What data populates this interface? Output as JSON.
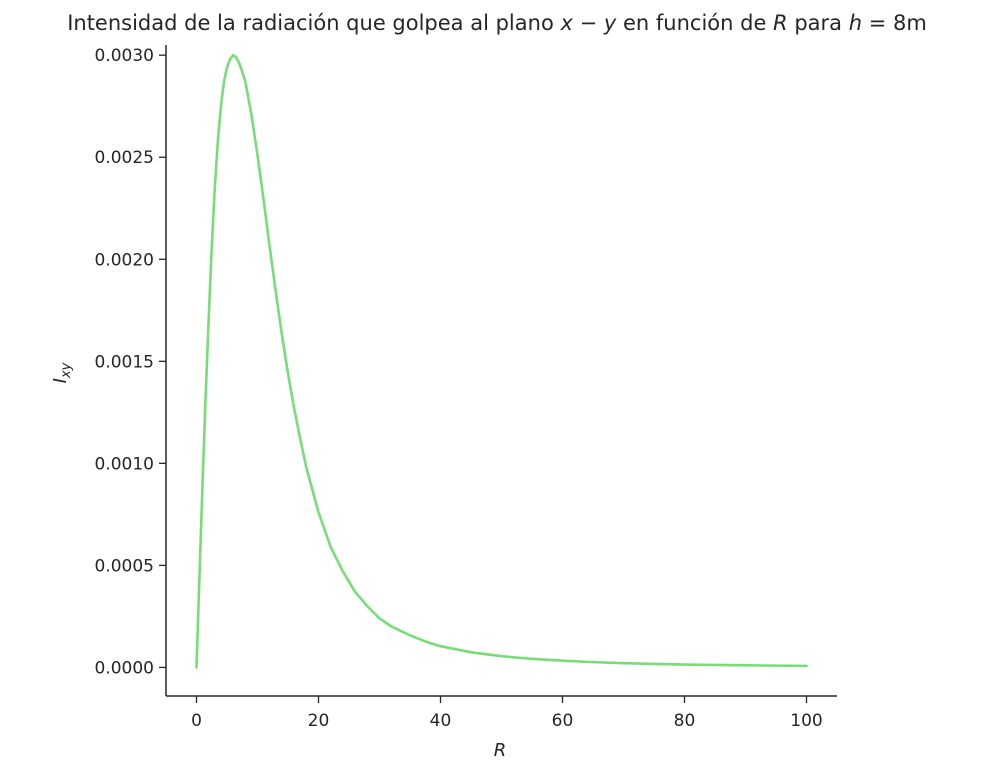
{
  "chart_data": {
    "type": "line",
    "title": "Intensidad de la radiación que golpea al plano x − y en función de R para h = 8m",
    "title_parts": {
      "pre": "Intensidad de la radiación que golpea al plano ",
      "var1": "x",
      "minus": " − ",
      "var2": "y",
      "mid": " en función de ",
      "var3": "R",
      "post_a": " para ",
      "var4": "h",
      "eq": " = ",
      "post_b": "8m"
    },
    "xlabel": "R",
    "ylabel_main": "I",
    "ylabel_sub": "xy",
    "xlim": [
      -5,
      105
    ],
    "ylim": [
      -0.00014,
      0.00305
    ],
    "x_ticks": [
      0,
      20,
      40,
      60,
      80,
      100
    ],
    "x_tick_labels": [
      "0",
      "20",
      "40",
      "60",
      "80",
      "100"
    ],
    "y_ticks": [
      0,
      0.0005,
      0.001,
      0.0015,
      0.002,
      0.0025,
      0.003
    ],
    "y_tick_labels": [
      "0.0000",
      "0.0005",
      "0.0010",
      "0.0015",
      "0.0020",
      "0.0025",
      "0.0030"
    ],
    "grid": false,
    "line_color": "#77dd77",
    "series": [
      {
        "x": [
          0,
          0.5,
          1,
          1.5,
          2,
          2.5,
          3,
          3.5,
          4,
          4.5,
          5,
          5.5,
          6,
          6.5,
          7,
          7.5,
          8,
          9,
          10,
          11,
          12,
          13,
          14,
          15,
          16,
          17,
          18,
          19,
          20,
          22,
          24,
          26,
          28,
          30,
          32,
          35,
          38,
          40,
          45,
          50,
          55,
          60,
          65,
          70,
          75,
          80,
          85,
          90,
          95,
          100
        ],
        "y": [
          0,
          0.00046,
          0.00091,
          0.00133,
          0.00171,
          0.00206,
          0.00235,
          0.00258,
          0.00275,
          0.00287,
          0.00294,
          0.00298,
          0.003,
          0.00299,
          0.00296,
          0.00292,
          0.00287,
          0.00271,
          0.00251,
          0.00229,
          0.00206,
          0.00184,
          0.00163,
          0.00144,
          0.00127,
          0.00112,
          0.00098,
          0.00087,
          0.00076,
          0.00059,
          0.00047,
          0.00037,
          0.0003,
          0.00024,
          0.0002,
          0.000157,
          0.000122,
          0.000104,
          7.4e-05,
          5.5e-05,
          4.2e-05,
          3.3e-05,
          2.6e-05,
          2.1e-05,
          1.7e-05,
          1.4e-05,
          1.2e-05,
          1.03e-05,
          8.8e-06,
          7.6e-06
        ]
      }
    ]
  }
}
